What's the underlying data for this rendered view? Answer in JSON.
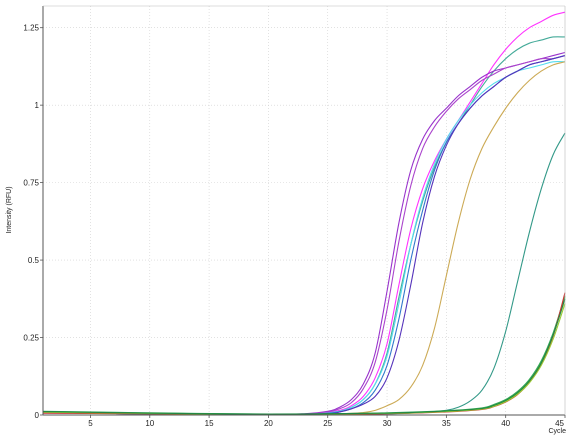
{
  "chart_data": {
    "type": "line",
    "title": "",
    "xlabel": "Cycle",
    "ylabel": "Intensity (RFU)",
    "xlim": [
      1,
      45
    ],
    "ylim": [
      0,
      1.32
    ],
    "x_ticks": [
      5,
      10,
      15,
      20,
      25,
      30,
      35,
      40,
      45
    ],
    "y_ticks": [
      0,
      0.25,
      0.5,
      0.75,
      1,
      1.25
    ],
    "y_tick_labels": [
      "0",
      "0.25",
      "0.5",
      "0.75",
      "1",
      "1.25"
    ],
    "grid": true,
    "legend": "none",
    "series": [
      {
        "color": "#ff33ff",
        "values": [
          [
            1,
            0.008
          ],
          [
            10,
            0.004
          ],
          [
            20,
            0.002
          ],
          [
            24,
            0.004
          ],
          [
            26,
            0.015
          ],
          [
            27,
            0.03
          ],
          [
            28,
            0.06
          ],
          [
            29,
            0.12
          ],
          [
            30,
            0.23
          ],
          [
            31,
            0.42
          ],
          [
            32,
            0.6
          ],
          [
            33,
            0.73
          ],
          [
            34,
            0.82
          ],
          [
            35,
            0.89
          ],
          [
            36,
            0.95
          ],
          [
            37,
            1.01
          ],
          [
            38,
            1.07
          ],
          [
            39,
            1.13
          ],
          [
            40,
            1.18
          ],
          [
            41,
            1.22
          ],
          [
            42,
            1.25
          ],
          [
            43,
            1.27
          ],
          [
            44,
            1.29
          ],
          [
            45,
            1.3
          ]
        ]
      },
      {
        "color": "#44aa99",
        "values": [
          [
            1,
            0.008
          ],
          [
            10,
            0.004
          ],
          [
            20,
            0.002
          ],
          [
            24,
            0.003
          ],
          [
            26,
            0.012
          ],
          [
            27,
            0.025
          ],
          [
            28,
            0.05
          ],
          [
            29,
            0.1
          ],
          [
            30,
            0.2
          ],
          [
            31,
            0.38
          ],
          [
            32,
            0.55
          ],
          [
            33,
            0.69
          ],
          [
            34,
            0.8
          ],
          [
            35,
            0.88
          ],
          [
            36,
            0.94
          ],
          [
            37,
            1.0
          ],
          [
            38,
            1.06
          ],
          [
            39,
            1.11
          ],
          [
            40,
            1.15
          ],
          [
            41,
            1.18
          ],
          [
            42,
            1.2
          ],
          [
            43,
            1.21
          ],
          [
            44,
            1.22
          ],
          [
            45,
            1.22
          ]
        ]
      },
      {
        "color": "#9933cc",
        "values": [
          [
            1,
            0.008
          ],
          [
            10,
            0.004
          ],
          [
            20,
            0.002
          ],
          [
            23,
            0.004
          ],
          [
            25,
            0.012
          ],
          [
            26,
            0.025
          ],
          [
            27,
            0.05
          ],
          [
            28,
            0.1
          ],
          [
            29,
            0.2
          ],
          [
            30,
            0.4
          ],
          [
            31,
            0.62
          ],
          [
            32,
            0.79
          ],
          [
            33,
            0.89
          ],
          [
            34,
            0.95
          ],
          [
            35,
            0.99
          ],
          [
            36,
            1.03
          ],
          [
            37,
            1.06
          ],
          [
            38,
            1.09
          ],
          [
            39,
            1.11
          ],
          [
            40,
            1.12
          ],
          [
            41,
            1.13
          ],
          [
            42,
            1.14
          ],
          [
            43,
            1.15
          ],
          [
            44,
            1.16
          ],
          [
            45,
            1.17
          ]
        ]
      },
      {
        "color": "#aa44cc",
        "values": [
          [
            1,
            0.008
          ],
          [
            10,
            0.004
          ],
          [
            20,
            0.002
          ],
          [
            23,
            0.003
          ],
          [
            25,
            0.01
          ],
          [
            26,
            0.02
          ],
          [
            27,
            0.04
          ],
          [
            28,
            0.085
          ],
          [
            29,
            0.17
          ],
          [
            30,
            0.34
          ],
          [
            31,
            0.56
          ],
          [
            32,
            0.74
          ],
          [
            33,
            0.86
          ],
          [
            34,
            0.93
          ],
          [
            35,
            0.98
          ],
          [
            36,
            1.02
          ],
          [
            37,
            1.05
          ],
          [
            38,
            1.08
          ],
          [
            39,
            1.1
          ],
          [
            40,
            1.12
          ],
          [
            41,
            1.13
          ],
          [
            42,
            1.14
          ],
          [
            43,
            1.15
          ],
          [
            44,
            1.15
          ],
          [
            45,
            1.16
          ]
        ]
      },
      {
        "color": "#55ddee",
        "values": [
          [
            1,
            0.008
          ],
          [
            10,
            0.004
          ],
          [
            20,
            0.002
          ],
          [
            24,
            0.003
          ],
          [
            26,
            0.012
          ],
          [
            27,
            0.025
          ],
          [
            28,
            0.05
          ],
          [
            29,
            0.1
          ],
          [
            30,
            0.19
          ],
          [
            31,
            0.36
          ],
          [
            32,
            0.55
          ],
          [
            33,
            0.7
          ],
          [
            34,
            0.81
          ],
          [
            35,
            0.89
          ],
          [
            36,
            0.95
          ],
          [
            37,
            1.0
          ],
          [
            38,
            1.04
          ],
          [
            39,
            1.07
          ],
          [
            40,
            1.09
          ],
          [
            41,
            1.11
          ],
          [
            42,
            1.12
          ],
          [
            43,
            1.13
          ],
          [
            44,
            1.14
          ],
          [
            45,
            1.14
          ]
        ]
      },
      {
        "color": "#3377cc",
        "values": [
          [
            1,
            0.008
          ],
          [
            10,
            0.004
          ],
          [
            20,
            0.002
          ],
          [
            24,
            0.003
          ],
          [
            26,
            0.01
          ],
          [
            27,
            0.02
          ],
          [
            28,
            0.04
          ],
          [
            29,
            0.08
          ],
          [
            30,
            0.16
          ],
          [
            31,
            0.31
          ],
          [
            32,
            0.5
          ],
          [
            33,
            0.66
          ],
          [
            34,
            0.79
          ],
          [
            35,
            0.88
          ],
          [
            36,
            0.94
          ],
          [
            37,
            0.99
          ],
          [
            38,
            1.03
          ],
          [
            39,
            1.06
          ],
          [
            40,
            1.09
          ],
          [
            41,
            1.11
          ],
          [
            42,
            1.13
          ],
          [
            43,
            1.14
          ],
          [
            44,
            1.15
          ],
          [
            45,
            1.16
          ]
        ]
      },
      {
        "color": "#5533bb",
        "values": [
          [
            1,
            0.008
          ],
          [
            10,
            0.004
          ],
          [
            20,
            0.002
          ],
          [
            25,
            0.004
          ],
          [
            26,
            0.01
          ],
          [
            27,
            0.02
          ],
          [
            28,
            0.035
          ],
          [
            29,
            0.06
          ],
          [
            30,
            0.12
          ],
          [
            31,
            0.24
          ],
          [
            32,
            0.42
          ],
          [
            33,
            0.62
          ],
          [
            34,
            0.77
          ],
          [
            35,
            0.87
          ],
          [
            36,
            0.94
          ],
          [
            37,
            0.99
          ],
          [
            38,
            1.03
          ],
          [
            39,
            1.06
          ],
          [
            40,
            1.09
          ],
          [
            41,
            1.11
          ],
          [
            42,
            1.13
          ],
          [
            43,
            1.14
          ],
          [
            44,
            1.15
          ],
          [
            45,
            1.16
          ]
        ]
      },
      {
        "color": "#ccaa55",
        "values": [
          [
            1,
            0.008
          ],
          [
            10,
            0.004
          ],
          [
            20,
            0.002
          ],
          [
            26,
            0.004
          ],
          [
            28,
            0.008
          ],
          [
            29,
            0.015
          ],
          [
            30,
            0.03
          ],
          [
            31,
            0.05
          ],
          [
            32,
            0.09
          ],
          [
            33,
            0.16
          ],
          [
            34,
            0.28
          ],
          [
            35,
            0.45
          ],
          [
            36,
            0.62
          ],
          [
            37,
            0.76
          ],
          [
            38,
            0.86
          ],
          [
            39,
            0.93
          ],
          [
            40,
            0.99
          ],
          [
            41,
            1.04
          ],
          [
            42,
            1.08
          ],
          [
            43,
            1.11
          ],
          [
            44,
            1.13
          ],
          [
            45,
            1.14
          ]
        ]
      },
      {
        "color": "#339988",
        "values": [
          [
            1,
            0.008
          ],
          [
            10,
            0.004
          ],
          [
            20,
            0.002
          ],
          [
            30,
            0.004
          ],
          [
            33,
            0.008
          ],
          [
            35,
            0.015
          ],
          [
            36,
            0.025
          ],
          [
            37,
            0.045
          ],
          [
            38,
            0.08
          ],
          [
            39,
            0.15
          ],
          [
            40,
            0.27
          ],
          [
            41,
            0.43
          ],
          [
            42,
            0.59
          ],
          [
            43,
            0.73
          ],
          [
            44,
            0.84
          ],
          [
            45,
            0.91
          ]
        ]
      },
      {
        "color": "#66cc33",
        "values": [
          [
            1,
            0.01
          ],
          [
            10,
            0.006
          ],
          [
            20,
            0.002
          ],
          [
            25,
            0.003
          ],
          [
            30,
            0.006
          ],
          [
            35,
            0.012
          ],
          [
            38,
            0.02
          ],
          [
            39,
            0.03
          ],
          [
            40,
            0.045
          ],
          [
            41,
            0.07
          ],
          [
            42,
            0.11
          ],
          [
            43,
            0.17
          ],
          [
            44,
            0.26
          ],
          [
            45,
            0.38
          ]
        ]
      },
      {
        "color": "#33aa55",
        "values": [
          [
            1,
            0.012
          ],
          [
            10,
            0.007
          ],
          [
            20,
            0.003
          ],
          [
            25,
            0.004
          ],
          [
            30,
            0.007
          ],
          [
            35,
            0.014
          ],
          [
            38,
            0.023
          ],
          [
            39,
            0.034
          ],
          [
            40,
            0.05
          ],
          [
            41,
            0.076
          ],
          [
            42,
            0.115
          ],
          [
            43,
            0.175
          ],
          [
            44,
            0.265
          ],
          [
            45,
            0.385
          ]
        ]
      },
      {
        "color": "#cc3333",
        "values": [
          [
            1,
            0.006
          ],
          [
            10,
            0.004
          ],
          [
            20,
            0.002
          ],
          [
            30,
            0.004
          ],
          [
            35,
            0.01
          ],
          [
            38,
            0.018
          ],
          [
            39,
            0.027
          ],
          [
            40,
            0.042
          ],
          [
            41,
            0.066
          ],
          [
            42,
            0.105
          ],
          [
            43,
            0.165
          ],
          [
            44,
            0.255
          ],
          [
            45,
            0.395
          ]
        ]
      },
      {
        "color": "#99cc33",
        "values": [
          [
            1,
            0.009
          ],
          [
            10,
            0.005
          ],
          [
            20,
            0.002
          ],
          [
            30,
            0.005
          ],
          [
            35,
            0.011
          ],
          [
            38,
            0.019
          ],
          [
            39,
            0.028
          ],
          [
            40,
            0.043
          ],
          [
            41,
            0.067
          ],
          [
            42,
            0.104
          ],
          [
            43,
            0.16
          ],
          [
            44,
            0.245
          ],
          [
            45,
            0.36
          ]
        ]
      },
      {
        "color": "#228844",
        "values": [
          [
            1,
            0.011
          ],
          [
            10,
            0.006
          ],
          [
            20,
            0.003
          ],
          [
            30,
            0.006
          ],
          [
            35,
            0.013
          ],
          [
            38,
            0.021
          ],
          [
            39,
            0.031
          ],
          [
            40,
            0.047
          ],
          [
            41,
            0.072
          ],
          [
            42,
            0.11
          ],
          [
            43,
            0.168
          ],
          [
            44,
            0.258
          ],
          [
            45,
            0.375
          ]
        ]
      }
    ]
  }
}
